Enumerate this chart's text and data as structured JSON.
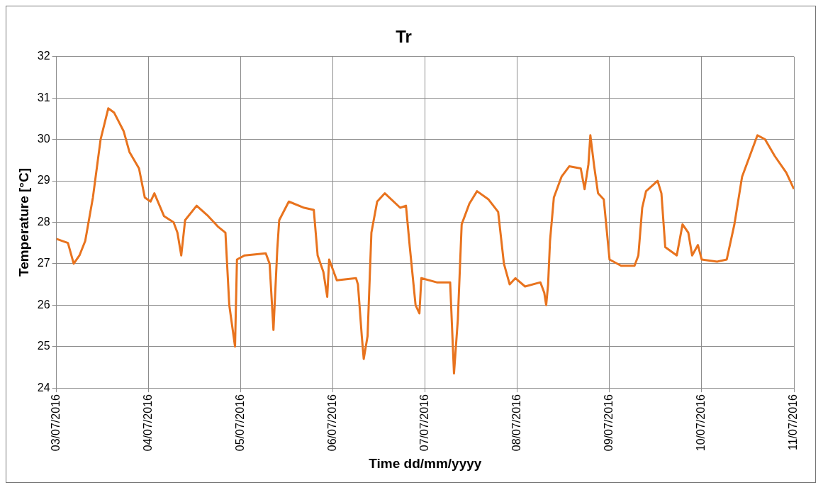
{
  "chart_data": {
    "type": "line",
    "title": "Tr",
    "xlabel": "Time dd/mm/yyyy",
    "ylabel": "Temperature [°C]",
    "x": [
      "2016-07-03T00:00",
      "2016-07-03T03:00",
      "2016-07-03T04:30",
      "2016-07-03T06:00",
      "2016-07-03T07:30",
      "2016-07-03T09:30",
      "2016-07-03T11:30",
      "2016-07-03T13:30",
      "2016-07-03T15:00",
      "2016-07-03T17:30",
      "2016-07-03T19:00",
      "2016-07-03T21:30",
      "2016-07-03T23:00",
      "2016-07-04T00:30",
      "2016-07-04T01:30",
      "2016-07-04T04:00",
      "2016-07-04T06:30",
      "2016-07-04T07:30",
      "2016-07-04T08:30",
      "2016-07-04T09:30",
      "2016-07-04T12:30",
      "2016-07-04T15:30",
      "2016-07-04T18:00",
      "2016-07-04T20:00",
      "2016-07-04T21:00",
      "2016-07-04T22:30",
      "2016-07-04T23:00",
      "2016-07-05T01:00",
      "2016-07-05T06:30",
      "2016-07-05T07:30",
      "2016-07-05T08:30",
      "2016-07-05T09:30",
      "2016-07-05T10:00",
      "2016-07-05T12:30",
      "2016-07-05T16:30",
      "2016-07-05T19:00",
      "2016-07-05T20:00",
      "2016-07-05T21:30",
      "2016-07-05T22:30",
      "2016-07-05T23:00",
      "2016-07-06T01:00",
      "2016-07-06T06:00",
      "2016-07-06T06:30",
      "2016-07-06T07:30",
      "2016-07-06T08:00",
      "2016-07-06T09:00",
      "2016-07-06T10:00",
      "2016-07-06T11:30",
      "2016-07-06T13:30",
      "2016-07-06T17:30",
      "2016-07-06T19:00",
      "2016-07-06T20:00",
      "2016-07-06T21:30",
      "2016-07-06T22:30",
      "2016-07-06T23:00",
      "2016-07-07T03:00",
      "2016-07-07T06:30",
      "2016-07-07T07:30",
      "2016-07-07T08:30",
      "2016-07-07T09:30",
      "2016-07-07T11:30",
      "2016-07-07T13:30",
      "2016-07-07T16:30",
      "2016-07-07T19:00",
      "2016-07-07T20:30",
      "2016-07-07T22:00",
      "2016-07-07T23:30",
      "2016-07-08T02:00",
      "2016-07-08T06:00",
      "2016-07-08T07:00",
      "2016-07-08T07:30",
      "2016-07-08T08:00",
      "2016-07-08T08:30",
      "2016-07-08T09:30",
      "2016-07-08T11:30",
      "2016-07-08T13:30",
      "2016-07-08T16:30",
      "2016-07-08T17:30",
      "2016-07-08T18:30",
      "2016-07-08T19:00",
      "2016-07-08T20:00",
      "2016-07-08T21:00",
      "2016-07-08T22:30",
      "2016-07-09T00:00",
      "2016-07-09T03:00",
      "2016-07-09T06:30",
      "2016-07-09T07:30",
      "2016-07-09T08:30",
      "2016-07-09T09:30",
      "2016-07-09T12:30",
      "2016-07-09T13:30",
      "2016-07-09T14:30",
      "2016-07-09T17:30",
      "2016-07-09T19:00",
      "2016-07-09T20:30",
      "2016-07-09T21:30",
      "2016-07-09T23:00",
      "2016-07-10T00:00",
      "2016-07-10T04:00",
      "2016-07-10T06:30",
      "2016-07-10T08:30",
      "2016-07-10T10:30",
      "2016-07-10T12:30",
      "2016-07-10T14:30",
      "2016-07-10T16:30",
      "2016-07-10T19:00",
      "2016-07-10T22:00",
      "2016-07-11T00:00"
    ],
    "series": [
      {
        "color": "#e8731e",
        "values": [
          27.6,
          27.5,
          27.0,
          27.2,
          27.55,
          28.6,
          30.0,
          30.75,
          30.65,
          30.2,
          29.7,
          29.3,
          28.6,
          28.5,
          28.7,
          28.15,
          28.0,
          27.75,
          27.2,
          28.05,
          28.4,
          28.15,
          27.9,
          27.75,
          26.0,
          25.0,
          27.1,
          27.2,
          27.25,
          27.0,
          25.4,
          27.35,
          28.05,
          28.5,
          28.35,
          28.3,
          27.2,
          26.8,
          26.2,
          27.1,
          26.6,
          26.65,
          26.5,
          25.25,
          24.7,
          25.25,
          27.75,
          28.5,
          28.7,
          28.35,
          28.4,
          27.4,
          26.0,
          25.8,
          26.65,
          26.55,
          26.55,
          24.35,
          25.65,
          27.95,
          28.45,
          28.75,
          28.55,
          28.25,
          27.0,
          26.5,
          26.65,
          26.45,
          26.55,
          26.3,
          26.0,
          26.5,
          27.55,
          28.6,
          29.1,
          29.35,
          29.3,
          28.8,
          29.4,
          30.1,
          29.35,
          28.7,
          28.55,
          27.1,
          26.95,
          26.95,
          27.2,
          28.35,
          28.75,
          29.0,
          28.7,
          27.4,
          27.2,
          27.95,
          27.75,
          27.2,
          27.45,
          27.1,
          27.05,
          27.1,
          27.95,
          29.1,
          29.6,
          30.1,
          30.0,
          29.6,
          29.2,
          28.8
        ]
      }
    ],
    "xlim": [
      "2016-07-03",
      "2016-07-11"
    ],
    "xticks": [
      {
        "value": "2016-07-03",
        "label": "03/07/2016"
      },
      {
        "value": "2016-07-04",
        "label": "04/07/2016"
      },
      {
        "value": "2016-07-05",
        "label": "05/07/2016"
      },
      {
        "value": "2016-07-06",
        "label": "06/07/2016"
      },
      {
        "value": "2016-07-07",
        "label": "07/07/2016"
      },
      {
        "value": "2016-07-08",
        "label": "08/07/2016"
      },
      {
        "value": "2016-07-09",
        "label": "09/07/2016"
      },
      {
        "value": "2016-07-10",
        "label": "10/07/2016"
      },
      {
        "value": "2016-07-11",
        "label": "11/07/2016"
      }
    ],
    "ylim": [
      24,
      32
    ],
    "yticks": [
      24,
      25,
      26,
      27,
      28,
      29,
      30,
      31,
      32
    ],
    "grid": true,
    "legend": false,
    "marker": "none",
    "line_style": "solid"
  }
}
